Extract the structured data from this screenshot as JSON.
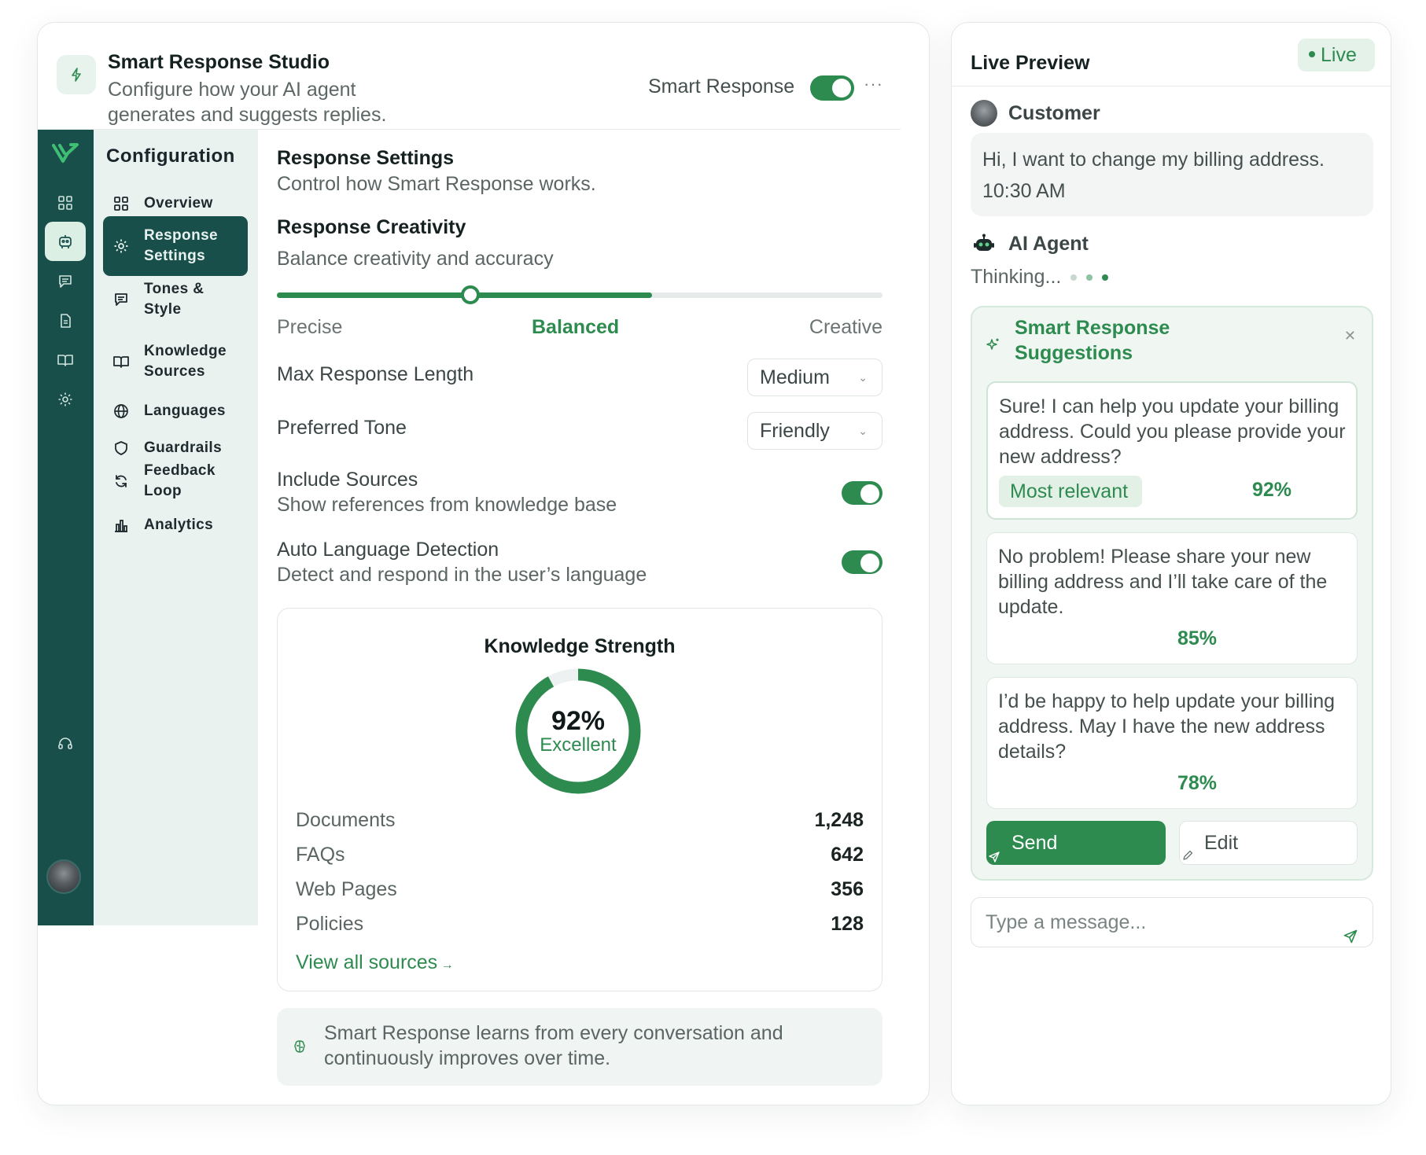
{
  "header": {
    "title": "Smart Response Studio",
    "subtitle": "Configure how your AI agent generates and suggests replies.",
    "toggle_label": "Smart Response",
    "toggle_on": true,
    "more_icon": "···"
  },
  "rail": {
    "icons": [
      "logo-icon",
      "grid-icon",
      "robot-icon",
      "chat-icon",
      "document-icon",
      "book-icon",
      "settings-icon",
      "headset-icon"
    ],
    "active": "robot-icon"
  },
  "config_nav": {
    "title": "Configuration",
    "items": [
      {
        "label": "Overview",
        "icon": "grid-icon"
      },
      {
        "label": "Response Settings",
        "icon": "gear-icon",
        "active": true
      },
      {
        "label": "Tones & Style",
        "icon": "chat-icon"
      },
      {
        "label": "Knowledge Sources",
        "icon": "book-icon"
      },
      {
        "label": "Languages",
        "icon": "globe-icon"
      },
      {
        "label": "Guardrails",
        "icon": "shield-icon"
      },
      {
        "label": "Feedback Loop",
        "icon": "refresh-icon"
      },
      {
        "label": "Analytics",
        "icon": "bar-chart-icon"
      }
    ]
  },
  "settings": {
    "title": "Response Settings",
    "subtitle": "Control how Smart Response works.",
    "creativity": {
      "title": "Response Creativity",
      "subtitle": "Balance creativity and accuracy",
      "labels": [
        "Precise",
        "Balanced",
        "Creative"
      ],
      "selected": "Balanced",
      "value_fraction": 0.32,
      "fill_fraction": 0.62
    },
    "max_length": {
      "label": "Max Response Length",
      "value": "Medium"
    },
    "tone": {
      "label": "Preferred Tone",
      "value": "Friendly"
    },
    "include_sources": {
      "label": "Include Sources",
      "description": "Show references from knowledge base",
      "on": true
    },
    "auto_language": {
      "label": "Auto Language Detection",
      "description": "Detect and respond in the user’s language",
      "on": true
    }
  },
  "knowledge": {
    "title": "Knowledge Strength",
    "percent": "92%",
    "percent_value": 92,
    "status": "Excellent",
    "rows": [
      {
        "label": "Documents",
        "value": "1,248"
      },
      {
        "label": "FAQs",
        "value": "642"
      },
      {
        "label": "Web Pages",
        "value": "356"
      },
      {
        "label": "Policies",
        "value": "128"
      }
    ],
    "link": "View all sources"
  },
  "note": {
    "text": "Smart Response learns from every conversation and continuously improves over time."
  },
  "preview": {
    "title": "Live Preview",
    "badge": "Live",
    "customer": {
      "name": "Customer",
      "message": "Hi, I want to change my billing address.",
      "time": "10:30 AM"
    },
    "agent": {
      "name": "AI Agent",
      "status": "Thinking..."
    },
    "suggestions": {
      "title": "Smart Response Suggestions",
      "items": [
        {
          "text": "Sure! I can help you update your billing address. Could you please provide your new address?",
          "badge": "Most relevant",
          "percent": "92%"
        },
        {
          "text": "No problem! Please share your new billing address and I’ll take care of the update.",
          "percent": "85%"
        },
        {
          "text": "I’d be happy to help update your billing address. May I have the new address details?",
          "percent": "78%"
        }
      ],
      "send_label": "Send",
      "edit_label": "Edit"
    },
    "input_placeholder": "Type a message..."
  },
  "colors": {
    "accent": "#2e8b50",
    "rail": "#194f4b",
    "nav_bg": "#e9f2ee"
  }
}
